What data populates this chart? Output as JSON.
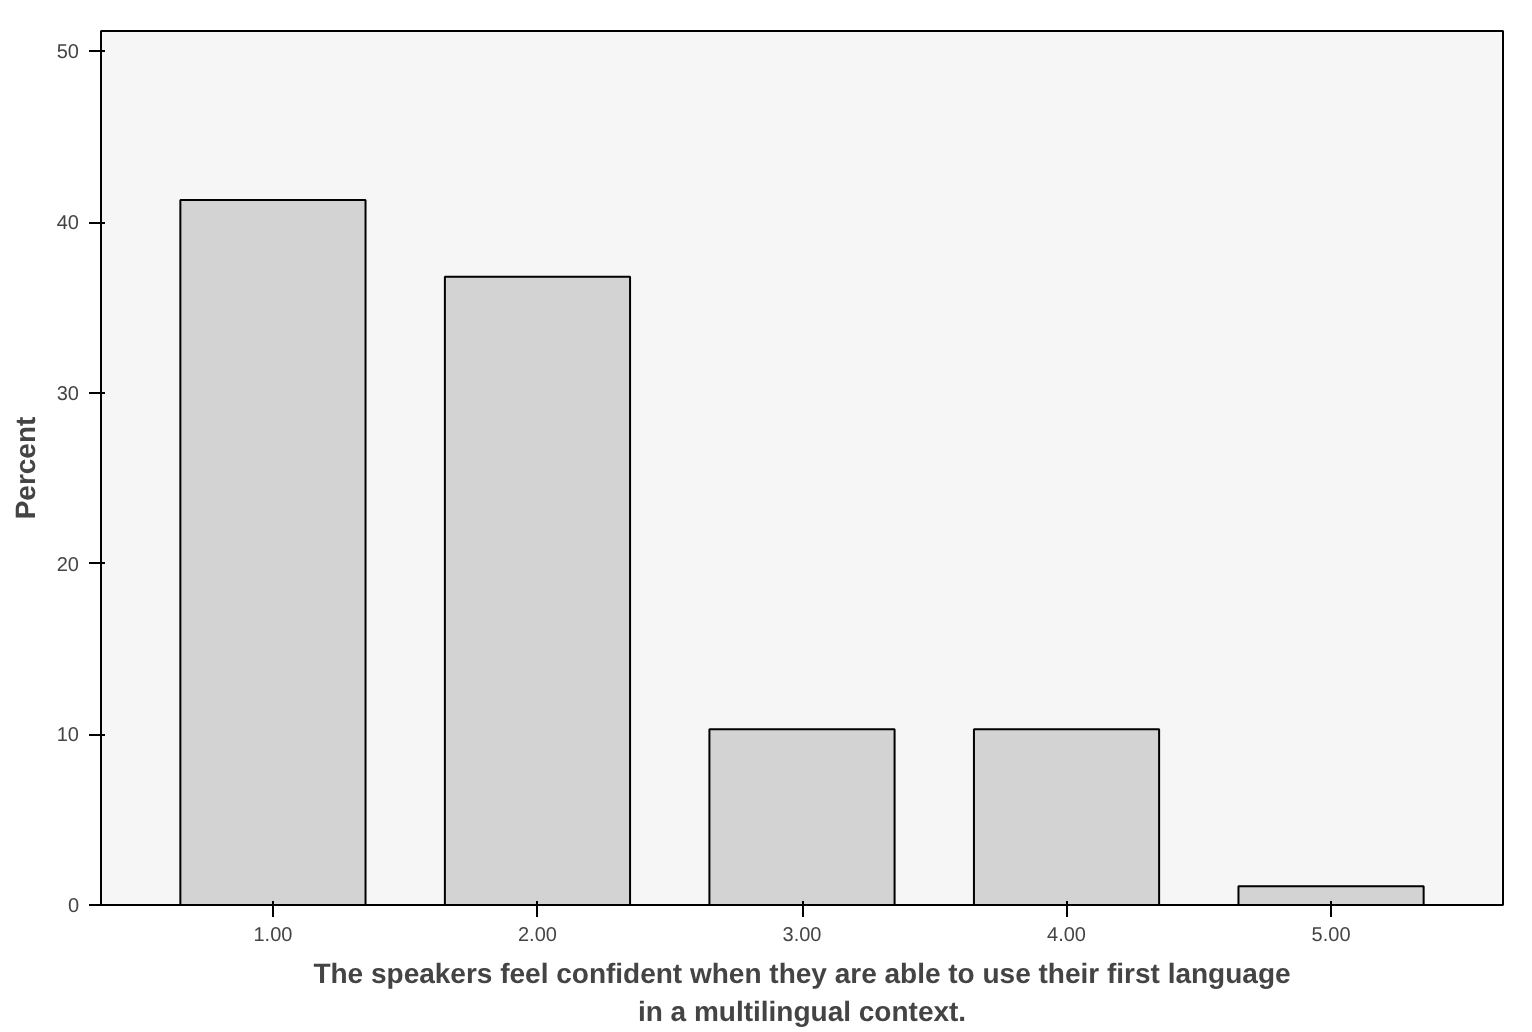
{
  "chart_data": {
    "type": "bar",
    "xlabel": "The speakers feel confident when they are able to use their first language\nin a multilingual context.",
    "ylabel": "Percent",
    "categories": [
      "1.00",
      "2.00",
      "3.00",
      "4.00",
      "5.00"
    ],
    "values": [
      41.3,
      36.8,
      10.3,
      10.3,
      1.1
    ],
    "color": "#d3d3d3",
    "ylim": [
      0,
      51.2
    ],
    "yticks": [
      0,
      10,
      20,
      30,
      40,
      50
    ],
    "grid": false
  }
}
